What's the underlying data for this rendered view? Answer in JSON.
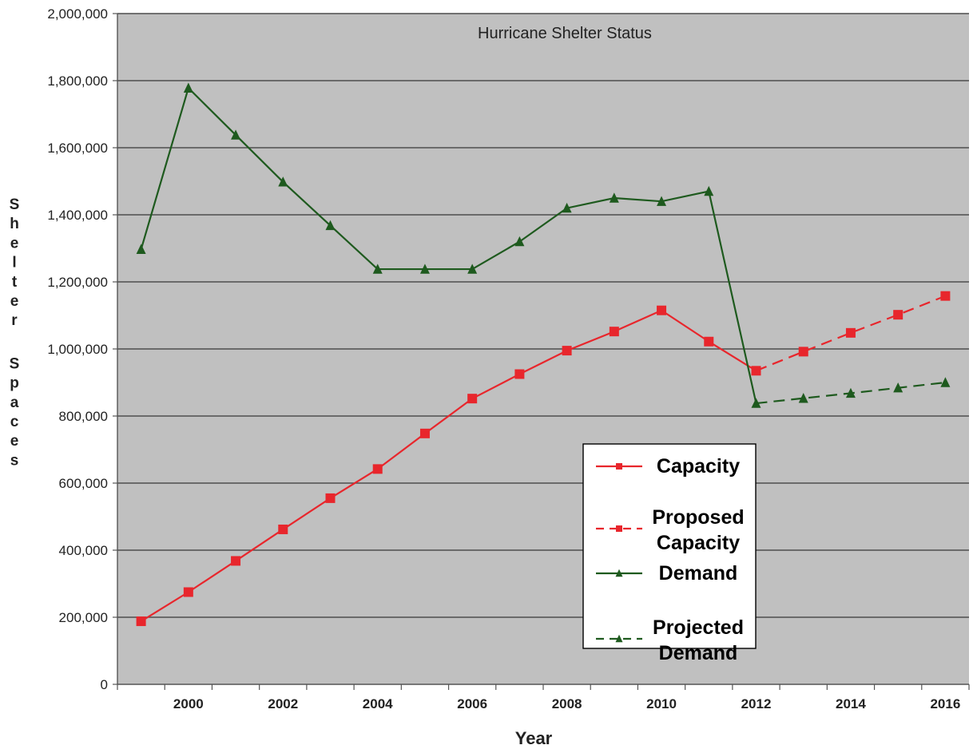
{
  "chart_data": {
    "type": "line",
    "title": "Hurricane Shelter Status",
    "xlabel": "Year",
    "ylabel": "Shelter Spaces",
    "ylabel_words": [
      "Shelter",
      "Spaces"
    ],
    "xlim": [
      1998.5,
      2016.5
    ],
    "ylim": [
      0,
      2000000
    ],
    "x_ticks": [
      2000,
      2002,
      2004,
      2006,
      2008,
      2010,
      2012,
      2014,
      2016
    ],
    "x_tick_labels": [
      "2000",
      "2002",
      "2004",
      "2006",
      "2008",
      "2010",
      "2012",
      "2014",
      "2016"
    ],
    "y_ticks": [
      0,
      200000,
      400000,
      600000,
      800000,
      1000000,
      1200000,
      1400000,
      1600000,
      1800000,
      2000000
    ],
    "y_tick_labels": [
      "0",
      "200,000",
      "400,000",
      "600,000",
      "800,000",
      "1,000,000",
      "1,200,000",
      "1,400,000",
      "1,600,000",
      "1,800,000",
      "2,000,000"
    ],
    "grid": true,
    "legend_position": "lower-right",
    "plot_background": "#c0c0c0",
    "series": [
      {
        "name": "Capacity",
        "color": "#e8262c",
        "dash": "solid",
        "marker": "square",
        "x": [
          1999,
          2000,
          2001,
          2002,
          2003,
          2004,
          2005,
          2006,
          2007,
          2008,
          2009,
          2010,
          2011,
          2012
        ],
        "y": [
          188000,
          275000,
          368000,
          462000,
          555000,
          642000,
          748000,
          852000,
          925000,
          995000,
          1052000,
          1115000,
          1022000,
          935000
        ]
      },
      {
        "name": "Proposed Capacity",
        "legend_lines": [
          "Proposed",
          "Capacity"
        ],
        "color": "#e8262c",
        "dash": "dashed",
        "marker": "square",
        "x": [
          2012,
          2013,
          2014,
          2015,
          2016
        ],
        "y": [
          935000,
          992000,
          1048000,
          1102000,
          1158000
        ]
      },
      {
        "name": "Demand",
        "color": "#1e5a1e",
        "dash": "solid",
        "marker": "triangle",
        "x": [
          1999,
          2000,
          2001,
          2002,
          2003,
          2004,
          2005,
          2006,
          2007,
          2008,
          2009,
          2010,
          2011,
          2012
        ],
        "y": [
          1297000,
          1778000,
          1638000,
          1498000,
          1368000,
          1238000,
          1238000,
          1238000,
          1320000,
          1420000,
          1450000,
          1440000,
          1470000,
          838000
        ]
      },
      {
        "name": "Projected Demand",
        "legend_lines": [
          "Projected",
          "Demand"
        ],
        "color": "#1e5a1e",
        "dash": "dashed",
        "marker": "triangle",
        "x": [
          2012,
          2013,
          2014,
          2015,
          2016
        ],
        "y": [
          838000,
          853000,
          868000,
          884000,
          900000
        ]
      }
    ]
  }
}
